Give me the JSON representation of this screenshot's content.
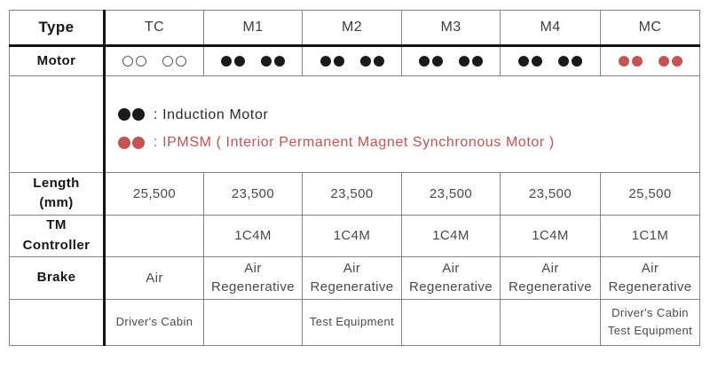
{
  "table": {
    "header": {
      "label": "Type",
      "columns": [
        "TC",
        "M1",
        "M2",
        "M3",
        "M4",
        "MC"
      ]
    },
    "motor_row": {
      "label": "Motor",
      "dots": [
        "open",
        "black",
        "black",
        "black",
        "black",
        "red"
      ]
    },
    "legend": {
      "induction": {
        "icon": "black-motor-dots",
        "text": ":  Induction Motor"
      },
      "ipmsm": {
        "icon": "red-motor-dots",
        "text": ":  IPMSM ( Interior Permanent Magnet Synchronous Motor )"
      }
    },
    "rows": {
      "length": {
        "label": [
          "Length",
          "(mm)"
        ],
        "values": [
          "25,500",
          "23,500",
          "23,500",
          "23,500",
          "23,500",
          "25,500"
        ]
      },
      "tm_controller": {
        "label": [
          "TM",
          "Controller"
        ],
        "values": [
          "",
          "1C4M",
          "1C4M",
          "1C4M",
          "1C4M",
          "1C1M"
        ]
      },
      "brake": {
        "label": "Brake",
        "values": [
          "Air",
          [
            "Air",
            "Regenerative"
          ],
          [
            "Air",
            "Regenerative"
          ],
          [
            "Air",
            "Regenerative"
          ],
          [
            "Air",
            "Regenerative"
          ],
          [
            "Air",
            "Regenerative"
          ]
        ]
      },
      "equipment": {
        "label": "",
        "values": [
          "Driver's Cabin",
          "",
          "Test Equipment",
          "",
          "",
          [
            "Driver's Cabin",
            "Test Equipment"
          ]
        ]
      }
    },
    "colors": {
      "induction_motor_dot": "#1a1a1a",
      "ipmsm_dot": "#c65351",
      "trailer_dot_outline": "#5c5c5c",
      "grid_line": "#848484",
      "heavy_line": "#121212"
    }
  }
}
